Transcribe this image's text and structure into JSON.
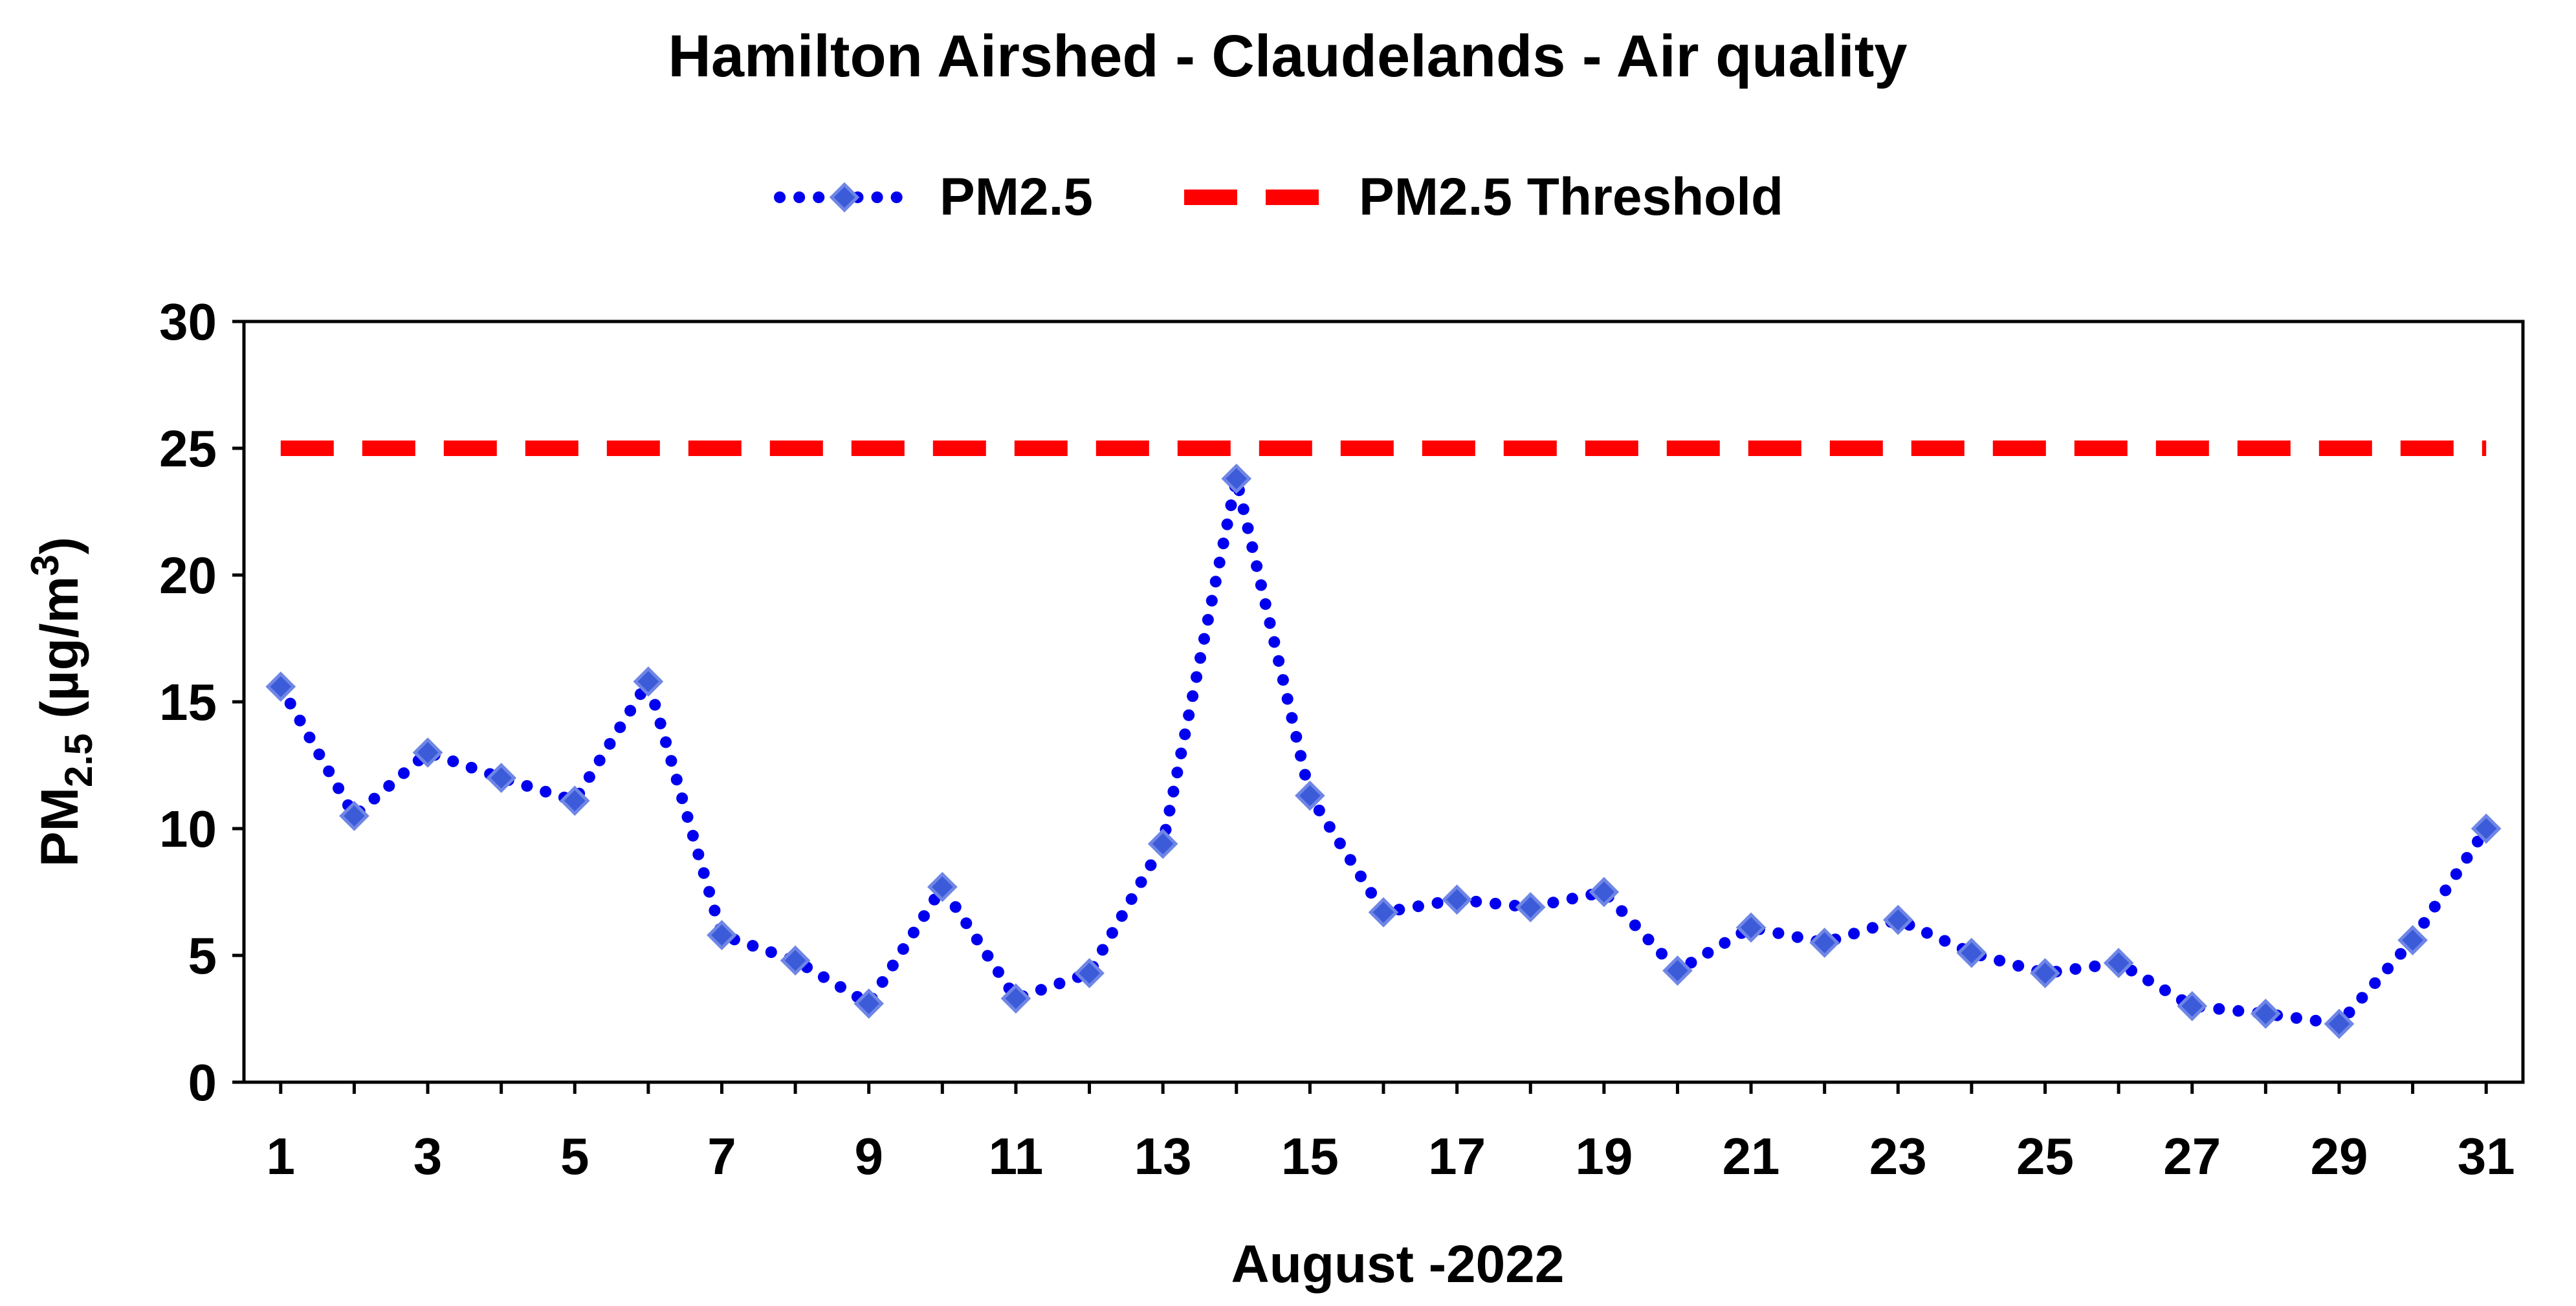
{
  "chart_data": {
    "type": "line",
    "title": "Hamilton Airshed - Claudelands - Air quality",
    "xlabel": "August -2022",
    "ylabel": {
      "main": "PM",
      "sub": "2.5",
      "unit_open": " (µg/m",
      "unit_sup": "3",
      "unit_close": ")"
    },
    "x": [
      1,
      2,
      3,
      4,
      5,
      6,
      7,
      8,
      9,
      10,
      11,
      12,
      13,
      14,
      15,
      16,
      17,
      18,
      19,
      20,
      21,
      22,
      23,
      24,
      25,
      26,
      27,
      28,
      29,
      30,
      31
    ],
    "x_ticks": [
      "1",
      "3",
      "5",
      "7",
      "9",
      "11",
      "13",
      "15",
      "17",
      "19",
      "21",
      "23",
      "25",
      "27",
      "29",
      "31"
    ],
    "y_ticks": [
      "0",
      "5",
      "10",
      "15",
      "20",
      "25",
      "30"
    ],
    "ylim": [
      0,
      30
    ],
    "xlim": [
      0.5,
      31.5
    ],
    "grid": false,
    "legend_position": "top-center",
    "series": [
      {
        "name": "PM2.5",
        "style": "dotted-with-diamond-markers",
        "color": "#0000ee",
        "marker_color": "#3b5bd8",
        "values": [
          15.6,
          10.5,
          13.0,
          12.0,
          11.1,
          15.8,
          5.8,
          4.8,
          3.1,
          7.7,
          3.3,
          4.3,
          9.4,
          23.8,
          11.3,
          6.7,
          7.2,
          6.9,
          7.5,
          4.4,
          6.1,
          5.5,
          6.4,
          5.1,
          4.3,
          4.7,
          3.0,
          2.7,
          2.3,
          5.6,
          10.0
        ]
      },
      {
        "name": "PM2.5 Threshold",
        "style": "dashed",
        "color": "#ff0000",
        "values": [
          25,
          25,
          25,
          25,
          25,
          25,
          25,
          25,
          25,
          25,
          25,
          25,
          25,
          25,
          25,
          25,
          25,
          25,
          25,
          25,
          25,
          25,
          25,
          25,
          25,
          25,
          25,
          25,
          25,
          25,
          25
        ]
      }
    ]
  }
}
